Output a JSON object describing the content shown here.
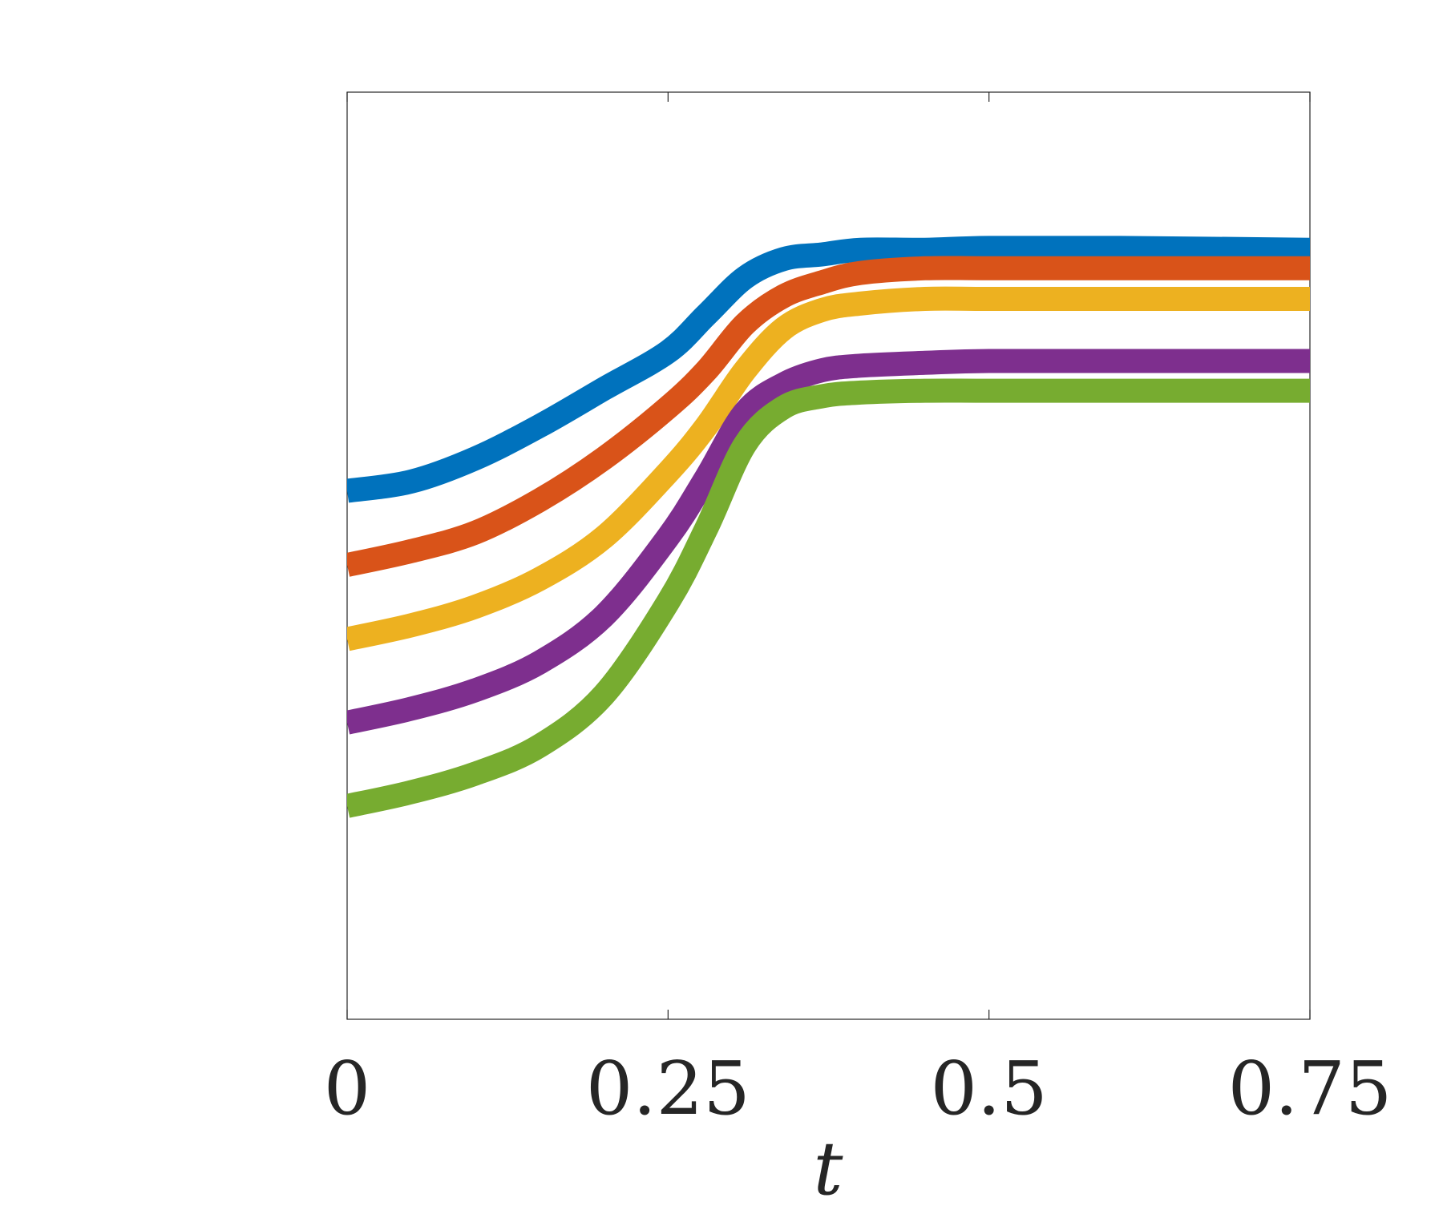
{
  "chart_data": {
    "type": "line",
    "xlabel": "t",
    "ylabel": "",
    "xlim": [
      0,
      0.75
    ],
    "ylim": [
      0,
      1
    ],
    "xticks": [
      {
        "value": 0,
        "label": "0"
      },
      {
        "value": 0.25,
        "label": "0.25"
      },
      {
        "value": 0.5,
        "label": "0.5"
      },
      {
        "value": 0.75,
        "label": "0.75"
      }
    ],
    "grid": false,
    "legend": "none",
    "series": [
      {
        "color": "#0072BD",
        "x": [
          0,
          0.05,
          0.1,
          0.15,
          0.2,
          0.25,
          0.28,
          0.31,
          0.34,
          0.37,
          0.4,
          0.45,
          0.5,
          0.6,
          0.75
        ],
        "y": [
          0.57,
          0.58,
          0.605,
          0.64,
          0.68,
          0.72,
          0.76,
          0.8,
          0.82,
          0.825,
          0.83,
          0.83,
          0.832,
          0.832,
          0.83
        ]
      },
      {
        "color": "#D95319",
        "x": [
          0,
          0.05,
          0.1,
          0.15,
          0.2,
          0.25,
          0.28,
          0.31,
          0.34,
          0.37,
          0.4,
          0.45,
          0.5,
          0.6,
          0.75
        ],
        "y": [
          0.49,
          0.505,
          0.525,
          0.56,
          0.605,
          0.66,
          0.7,
          0.75,
          0.78,
          0.795,
          0.805,
          0.81,
          0.81,
          0.81,
          0.81
        ]
      },
      {
        "color": "#EDB120",
        "x": [
          0,
          0.05,
          0.1,
          0.15,
          0.2,
          0.25,
          0.28,
          0.31,
          0.34,
          0.37,
          0.4,
          0.45,
          0.5,
          0.6,
          0.75
        ],
        "y": [
          0.41,
          0.425,
          0.445,
          0.475,
          0.52,
          0.59,
          0.64,
          0.7,
          0.745,
          0.765,
          0.772,
          0.777,
          0.777,
          0.777,
          0.777
        ]
      },
      {
        "color": "#7E2F8E",
        "x": [
          0,
          0.05,
          0.1,
          0.15,
          0.2,
          0.25,
          0.28,
          0.31,
          0.34,
          0.37,
          0.4,
          0.45,
          0.5,
          0.6,
          0.75
        ],
        "y": [
          0.32,
          0.335,
          0.355,
          0.385,
          0.435,
          0.52,
          0.585,
          0.655,
          0.685,
          0.7,
          0.705,
          0.708,
          0.71,
          0.71,
          0.71
        ]
      },
      {
        "color": "#77AC30",
        "x": [
          0,
          0.05,
          0.1,
          0.15,
          0.2,
          0.25,
          0.28,
          0.31,
          0.34,
          0.37,
          0.4,
          0.45,
          0.5,
          0.6,
          0.75
        ],
        "y": [
          0.23,
          0.245,
          0.265,
          0.295,
          0.35,
          0.45,
          0.53,
          0.62,
          0.66,
          0.672,
          0.676,
          0.678,
          0.678,
          0.678,
          0.678
        ]
      }
    ]
  }
}
